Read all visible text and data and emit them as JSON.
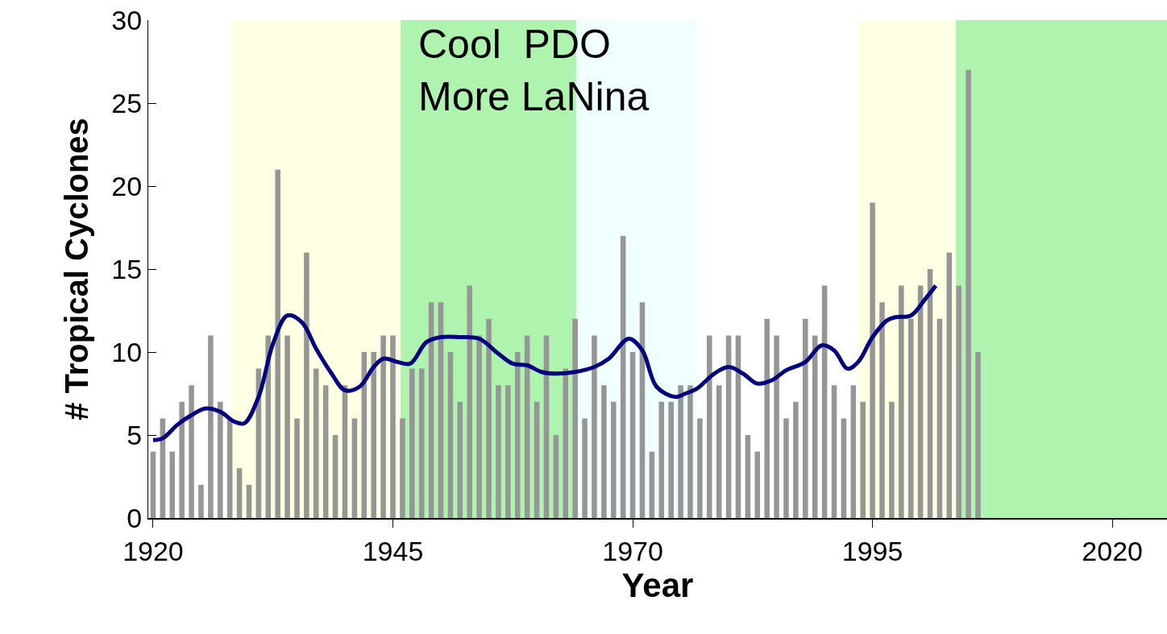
{
  "chart_data": {
    "type": "bar",
    "xlabel": "Year",
    "ylabel": "# Tropical Cyclones",
    "x": [
      1920,
      1921,
      1922,
      1923,
      1924,
      1925,
      1926,
      1927,
      1928,
      1929,
      1930,
      1931,
      1932,
      1933,
      1934,
      1935,
      1936,
      1937,
      1938,
      1939,
      1940,
      1941,
      1942,
      1943,
      1944,
      1945,
      1946,
      1947,
      1948,
      1949,
      1950,
      1951,
      1952,
      1953,
      1954,
      1955,
      1956,
      1957,
      1958,
      1959,
      1960,
      1961,
      1962,
      1963,
      1964,
      1965,
      1966,
      1967,
      1968,
      1969,
      1970,
      1971,
      1972,
      1973,
      1974,
      1975,
      1976,
      1977,
      1978,
      1979,
      1980,
      1981,
      1982,
      1983,
      1984,
      1985,
      1986,
      1987,
      1988,
      1989,
      1990,
      1991,
      1992,
      1993,
      1994,
      1995,
      1996,
      1997,
      1998,
      1999,
      2000,
      2001,
      2002,
      2003,
      2004,
      2005,
      2006
    ],
    "series": [
      {
        "color": "#969696",
        "values": [
          4,
          6,
          4,
          7,
          8,
          2,
          11,
          7,
          6,
          3,
          2,
          9,
          11,
          21,
          11,
          6,
          16,
          9,
          8,
          5,
          8,
          6,
          10,
          10,
          11,
          11,
          6,
          9,
          9,
          13,
          13,
          10,
          7,
          14,
          11,
          12,
          8,
          8,
          10,
          11,
          7,
          11,
          5,
          9,
          12,
          6,
          11,
          8,
          7,
          17,
          10,
          13,
          4,
          7,
          7,
          8,
          8,
          6,
          11,
          8,
          11,
          11,
          5,
          4,
          12,
          11,
          6,
          7,
          12,
          11,
          14,
          8,
          6,
          8,
          7,
          19,
          13,
          7,
          14,
          12,
          14,
          15,
          12,
          16,
          14,
          27,
          10
        ]
      },
      {
        "type": "line",
        "color": "#000080",
        "x": [
          1920,
          1921,
          1922.5,
          1924,
          1925.5,
          1927,
          1928.5,
          1929.5,
          1931,
          1932.5,
          1934,
          1935.5,
          1937,
          1938.5,
          1940,
          1941.5,
          1943,
          1944,
          1945.5,
          1946.8,
          1948.5,
          1950,
          1952,
          1954,
          1956,
          1957.5,
          1959,
          1960.5,
          1962,
          1964,
          1966,
          1967.5,
          1969.6,
          1971,
          1972.5,
          1974.4,
          1975.5,
          1976.7,
          1978.5,
          1980,
          1981.5,
          1983,
          1984.5,
          1986,
          1988,
          1989.7,
          1991,
          1992.4,
          1993.5,
          1995,
          1996.5,
          1997.4,
          1999,
          2000.5,
          2001.6
        ],
        "values": [
          4.7,
          4.8,
          5.6,
          6.2,
          6.6,
          6.4,
          5.8,
          5.7,
          7.3,
          10.5,
          12.2,
          11.8,
          10.2,
          8.8,
          7.7,
          7.9,
          9.1,
          9.6,
          9.4,
          9.3,
          10.6,
          10.9,
          10.9,
          10.8,
          9.9,
          9.3,
          9.2,
          8.8,
          8.7,
          8.8,
          9.1,
          9.6,
          10.8,
          10.1,
          7.9,
          7.3,
          7.5,
          7.8,
          8.7,
          9.1,
          8.7,
          8.1,
          8.3,
          8.9,
          9.4,
          10.4,
          10.1,
          9.0,
          9.4,
          10.9,
          11.9,
          12.1,
          12.2,
          13.2,
          14.0
        ]
      }
    ],
    "xlim": [
      1919.5,
      2025.7
    ],
    "xticks": [
      1920,
      1945,
      1970,
      1995,
      2020
    ],
    "ylim": [
      0,
      30
    ],
    "yticks": [
      0,
      5,
      10,
      15,
      20,
      25,
      30
    ],
    "grid": false,
    "line_style": "solid",
    "marker": "none",
    "bands": [
      {
        "axis": "x",
        "from": 1928.2,
        "to": 1945.8,
        "color": "#ffffc8"
      },
      {
        "axis": "x",
        "from": 1945.8,
        "to": 1964.1,
        "color": "#5ee85e",
        "label": "Cool  PDO\nMore LaNina"
      },
      {
        "axis": "x",
        "from": 1964.1,
        "to": 1976.7,
        "color": "#e2ffff"
      },
      {
        "axis": "x",
        "from": 1993.5,
        "to": 2003.7,
        "color": "#ffffc8"
      },
      {
        "axis": "x",
        "from": 2003.7,
        "to": 2025.7,
        "color": "#5ee85e"
      }
    ]
  }
}
